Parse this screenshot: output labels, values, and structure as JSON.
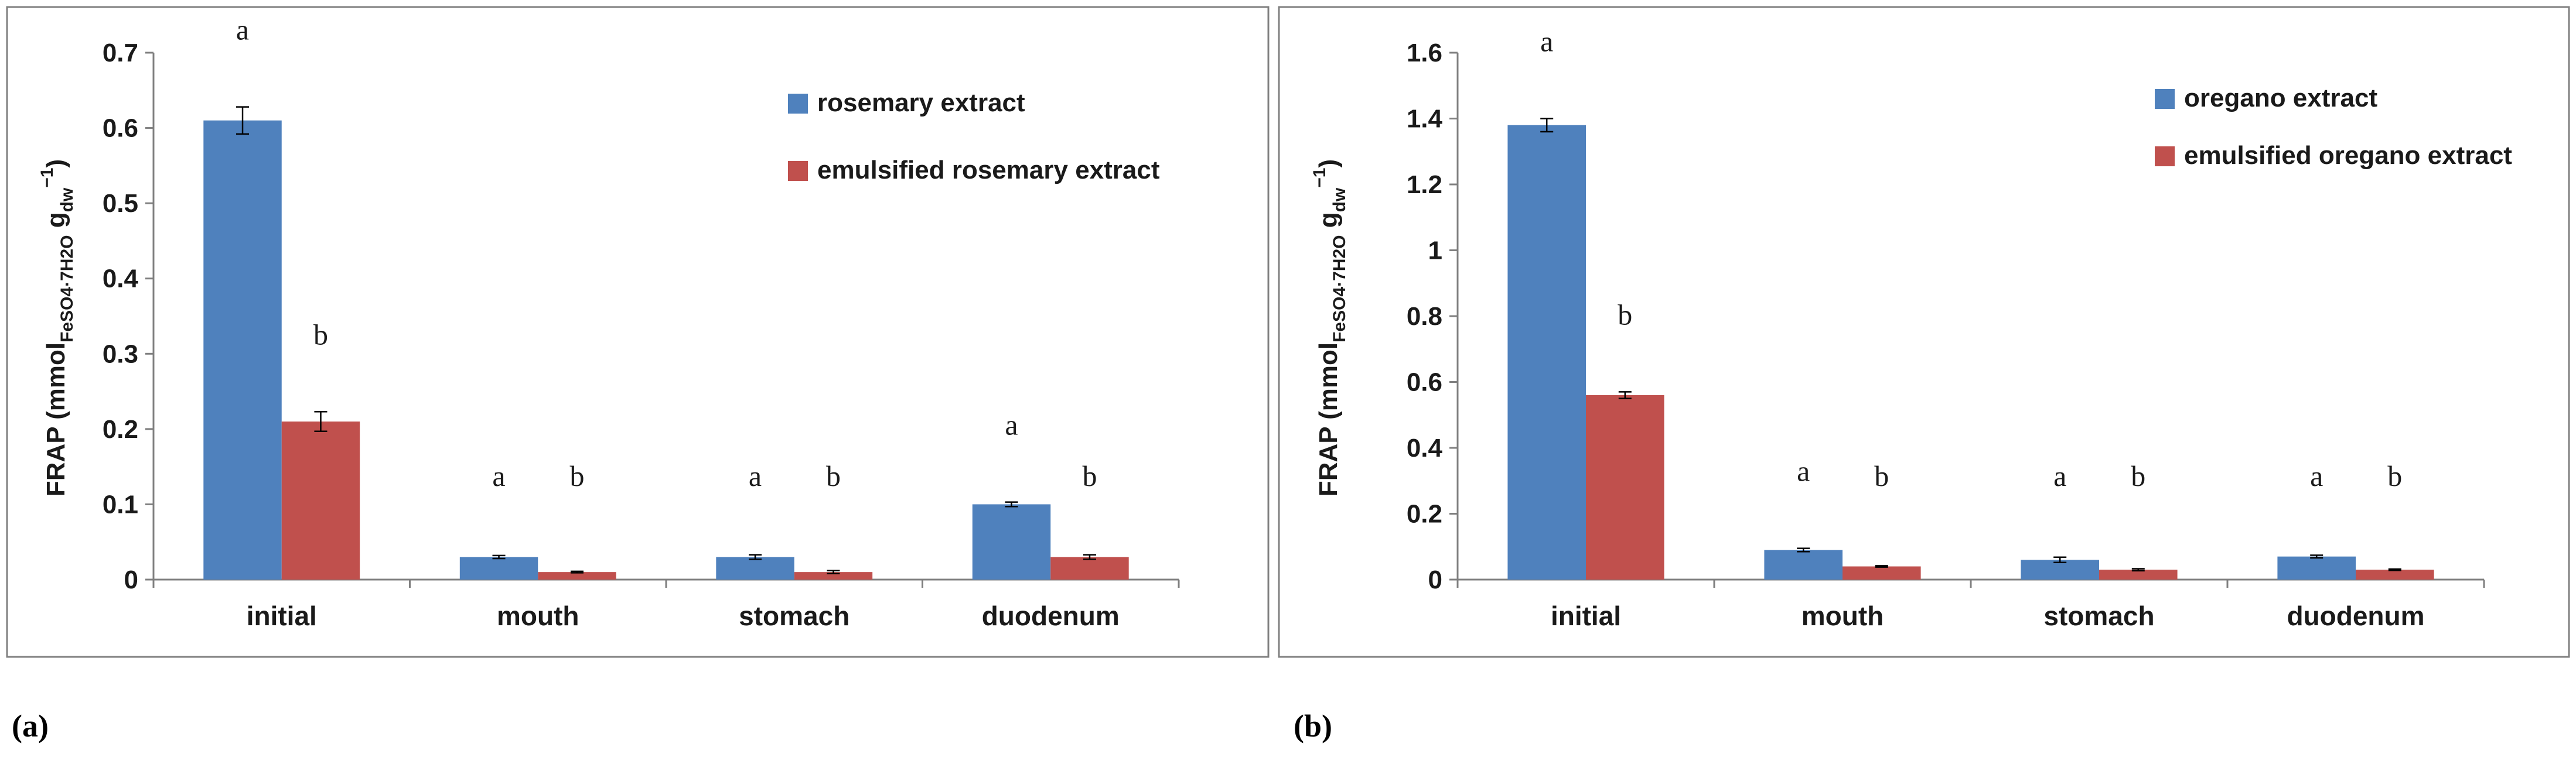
{
  "chart_data": [
    {
      "panel": "(a)",
      "type": "bar",
      "categories": [
        "initial",
        "mouth",
        "stomach",
        "duodenum"
      ],
      "ylabel": {
        "base": "FRAP (mmol",
        "sub1": "FeSO4·7H2O",
        "mid": " g",
        "sub2": "dw",
        "sup": "−1",
        "close": ")"
      },
      "ylim": [
        0,
        0.7
      ],
      "yticks": [
        "0",
        "0.1",
        "0.2",
        "0.3",
        "0.4",
        "0.5",
        "0.6",
        "0.7"
      ],
      "legend_position": "top-right",
      "series": [
        {
          "name": "rosemary extract",
          "color": "#4f81bd",
          "values": [
            0.61,
            0.03,
            0.03,
            0.1
          ],
          "errors": [
            0.018,
            0.002,
            0.003,
            0.003
          ],
          "letters": [
            "a",
            "a",
            "a",
            "a"
          ]
        },
        {
          "name": "emulsified rosemary extract",
          "color": "#c0504d",
          "values": [
            0.21,
            0.01,
            0.01,
            0.03
          ],
          "errors": [
            0.013,
            0.001,
            0.002,
            0.003
          ],
          "letters": [
            "b",
            "b",
            "b",
            "b"
          ]
        }
      ]
    },
    {
      "panel": "(b)",
      "type": "bar",
      "categories": [
        "initial",
        "mouth",
        "stomach",
        "duodenum"
      ],
      "ylabel": {
        "base": "FRAP (mmol",
        "sub1": "FeSO4·7H2O",
        "mid": " g",
        "sub2": "dw",
        "sup": "−1",
        "close": ")"
      },
      "ylim": [
        0,
        1.6
      ],
      "yticks": [
        "0",
        "0.2",
        "0.4",
        "0.6",
        "0.8",
        "1",
        "1.2",
        "1.4",
        "1.6"
      ],
      "legend_position": "top-right",
      "series": [
        {
          "name": "oregano extract",
          "color": "#4f81bd",
          "values": [
            1.38,
            0.09,
            0.06,
            0.07
          ],
          "errors": [
            0.02,
            0.005,
            0.008,
            0.004
          ],
          "letters": [
            "a",
            "a",
            "a",
            "a"
          ]
        },
        {
          "name": "emulsified oregano extract",
          "color": "#c0504d",
          "values": [
            0.56,
            0.04,
            0.03,
            0.03
          ],
          "errors": [
            0.01,
            0.002,
            0.003,
            0.002
          ],
          "letters": [
            "b",
            "b",
            "b",
            "b"
          ]
        }
      ]
    }
  ]
}
